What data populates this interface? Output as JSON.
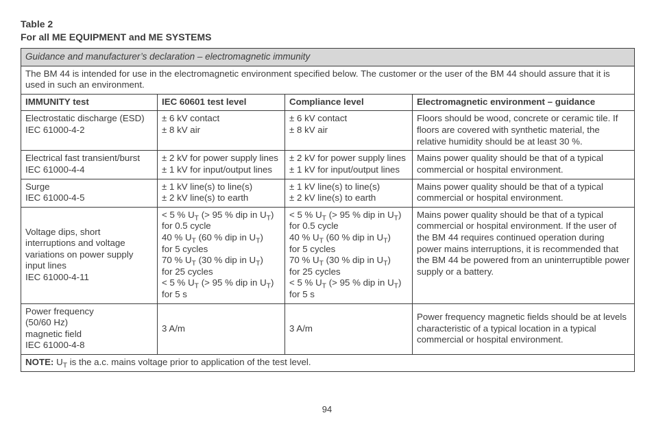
{
  "title": {
    "line1": "Table 2",
    "line2": "For all ME EQUIPMENT and ME SYSTEMS"
  },
  "grayBand": "Guidance and manufacturer’s declaration – electromagnetic immunity",
  "intro": "The BM 44 is intended for use in the electromagnetic environment specified below. The customer or the user of the BM 44 should assure that it is used in such an environment.",
  "headers": {
    "c1": "IMMUNITY test",
    "c2": "IEC 60601 test level",
    "c3": "Compliance level",
    "c4": "Electromagnetic environment – guidance"
  },
  "rows": {
    "r1": {
      "c1a": "Electrostatic discharge (ESD)",
      "c1b": "IEC 61000-4-2",
      "c2a": "± 6 kV contact",
      "c2b": "± 8 kV air",
      "c3a": "± 6 kV contact",
      "c3b": "± 8 kV air",
      "c4": "Floors should be wood, concrete or ceramic tile. If floors are covered with synthetic material, the relative humidity should be at least 30 %."
    },
    "r2": {
      "c1a": "Electrical fast transient/burst",
      "c1b": "IEC 61000-4-4",
      "c2a": "± 2 kV for power supply lines",
      "c2b": "± 1 kV for input/output lines",
      "c3a": "± 2 kV for power supply lines",
      "c3b": "± 1 kV for input/output lines",
      "c4": "Mains power quality should be that of a typical commercial or hospital environment."
    },
    "r3": {
      "c1a": "Surge",
      "c1b": "IEC 61000-4-5",
      "c2a": "± 1 kV line(s) to line(s)",
      "c2b": "± 2 kV line(s) to earth",
      "c3a": "± 1 kV line(s) to line(s)",
      "c3b": "± 2 kV line(s) to earth",
      "c4": "Mains power quality should be that of a typical commercial or hospital environment."
    },
    "r4": {
      "c1": "Voltage dips, short interruptions and voltage variations on power supply input lines\nIEC 61000-4-11",
      "lines": {
        "l1a": "< 5 % U",
        "l1b": " (> 95 % dip in U",
        "l1c": ")",
        "l2": "for 0.5 cycle",
        "l3a": "40 % U",
        "l3b": " (60 % dip in U",
        "l3c": ")",
        "l4": "for 5 cycles",
        "l5a": "70 % U",
        "l5b": " (30 % dip in U",
        "l5c": ")",
        "l6": "for 25 cycles",
        "l7a": "< 5 % U",
        "l7b": " (> 95 % dip in U",
        "l7c": ")",
        "l8": "for 5 s"
      },
      "c4": "Mains power quality should be that of a typical commercial or hospital environment. If the user of the BM 44 requires continued operation during power mains interruptions, it is recommended that the BM 44 be powered from an uninterruptible power supply or a battery."
    },
    "r5": {
      "c1a": "Power frequency",
      "c1b": "(50/60 Hz)",
      "c1c": "magnetic field",
      "c1d": "IEC 61000-4-8",
      "c2": "3 A/m",
      "c3": "3 A/m",
      "c4": "Power frequency magnetic fields should be at levels characteristic of a typical location in a typical commercial or hospital environment."
    }
  },
  "note": {
    "label": "NOTE:",
    "textA": "  U",
    "textB": " is the a.c. mains voltage prior to application of the test level."
  },
  "pageNumber": "94"
}
